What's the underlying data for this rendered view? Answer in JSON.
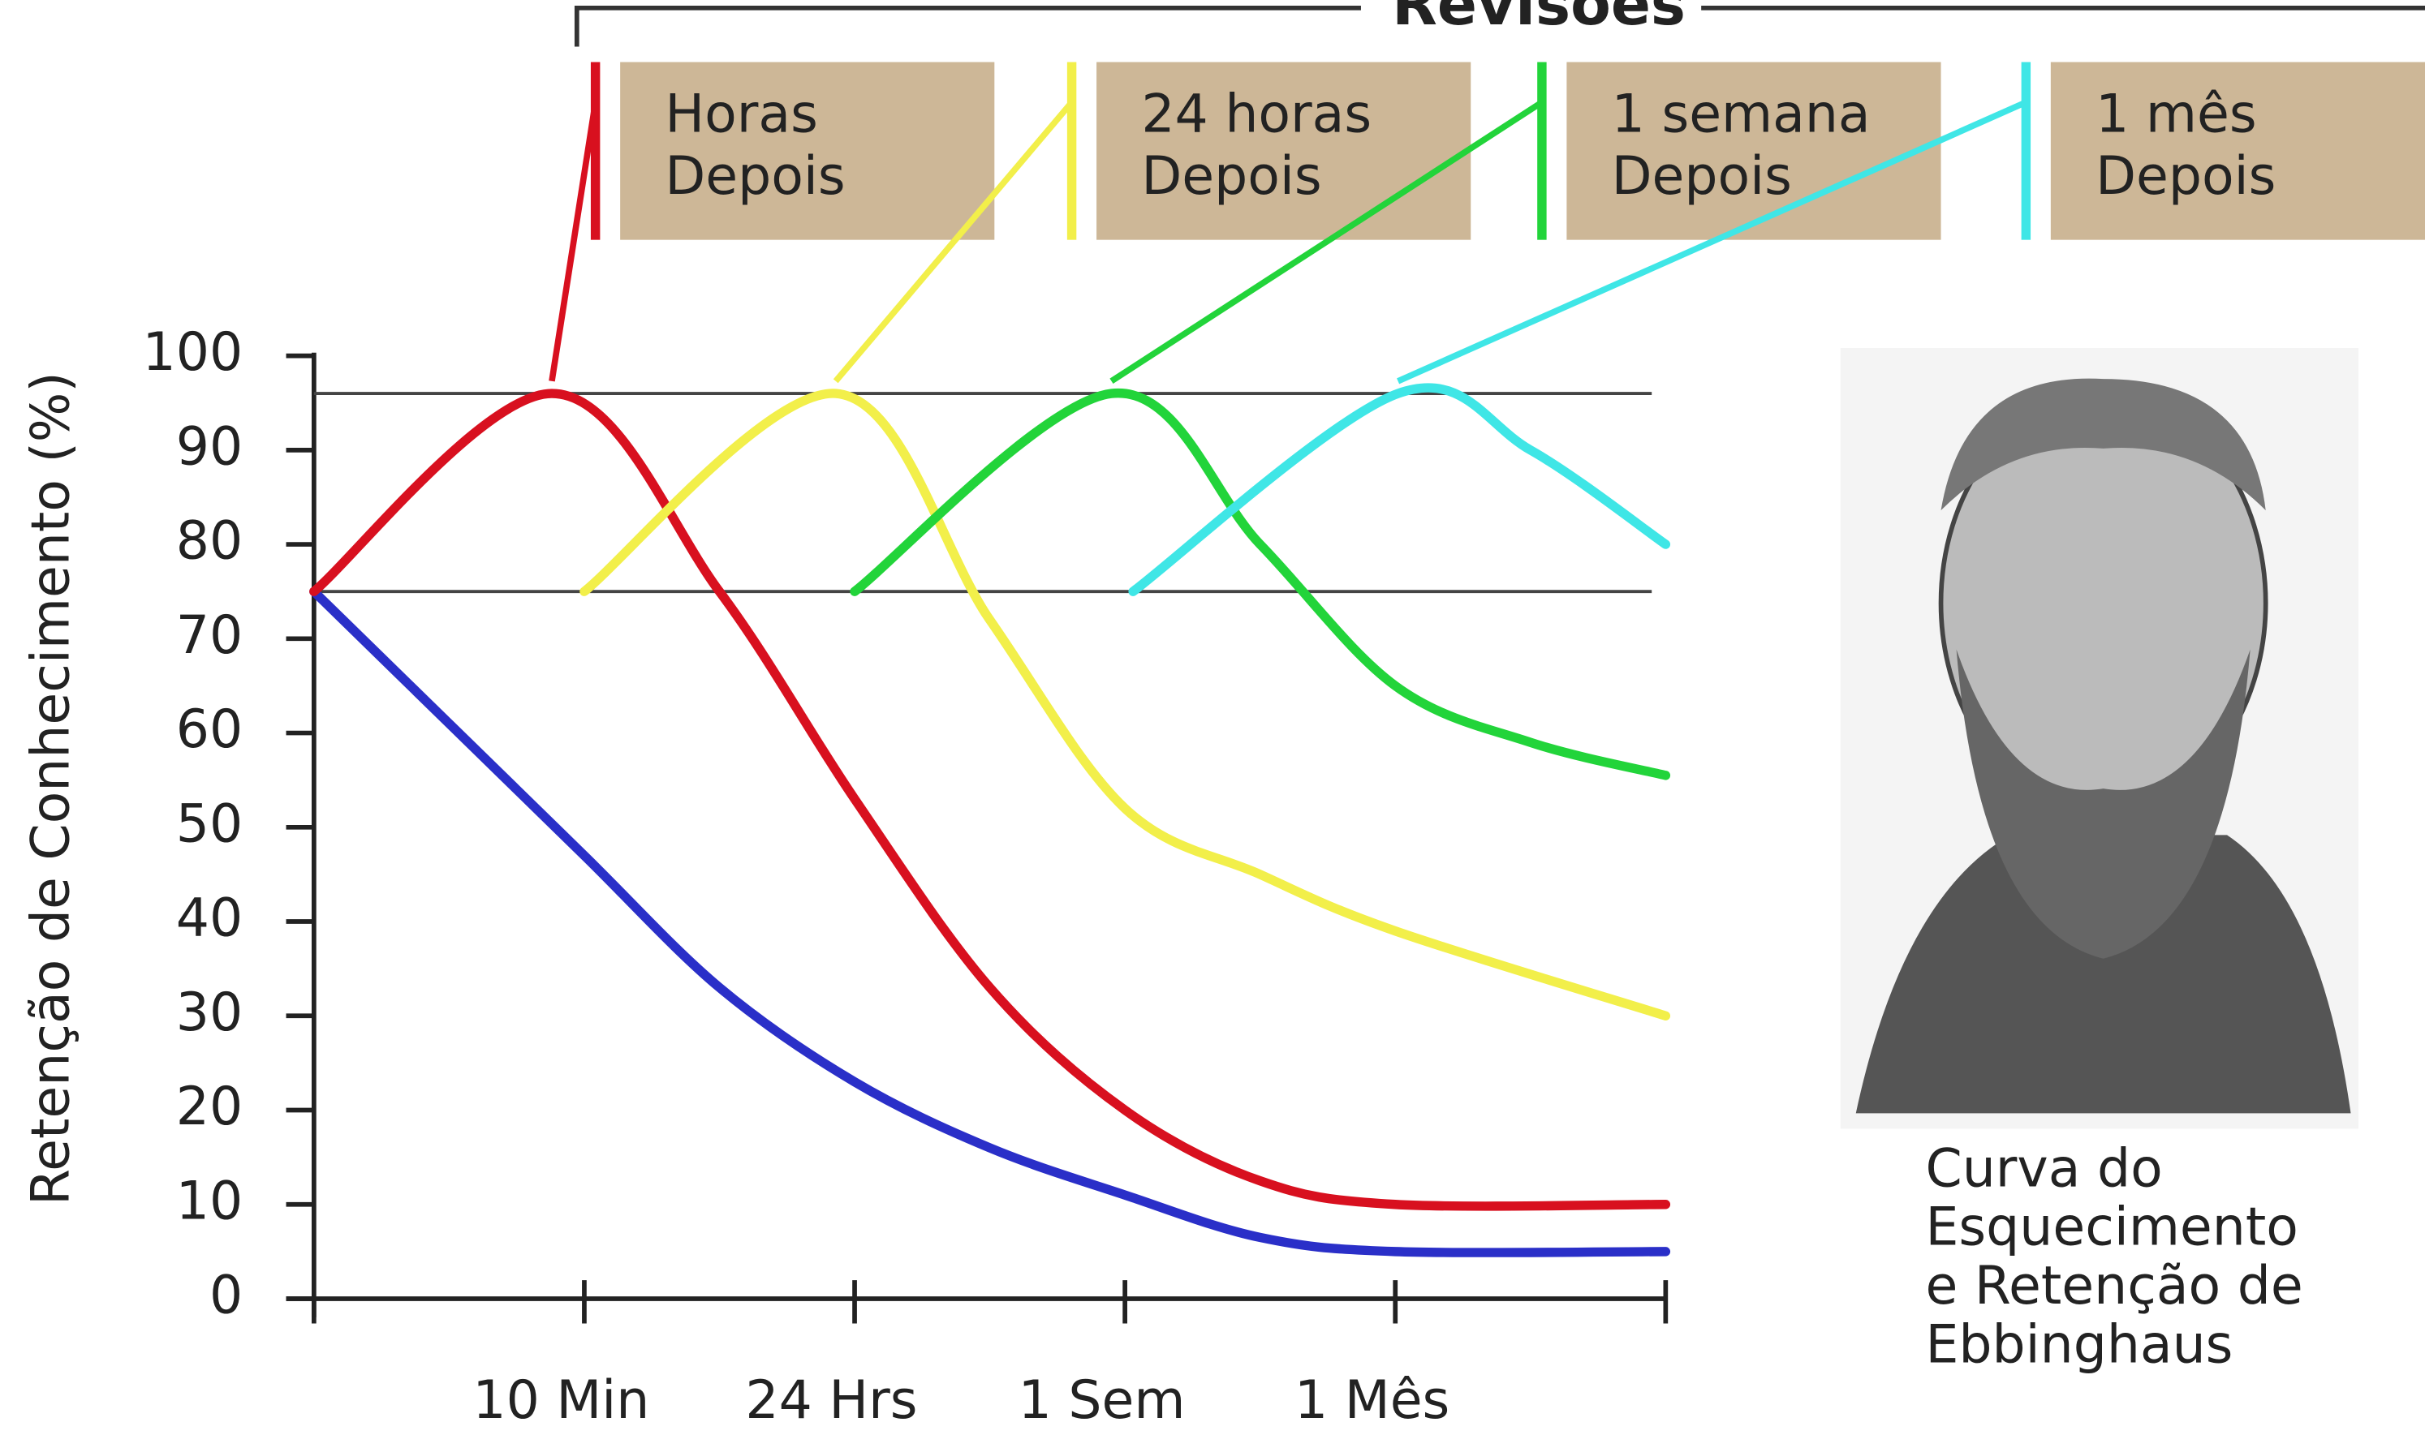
{
  "chart_data": {
    "type": "line",
    "ylabel": "Retenção de Conhecimento (%)",
    "ylim": [
      0,
      100
    ],
    "yticks": [
      0,
      10,
      20,
      30,
      40,
      50,
      60,
      70,
      80,
      90,
      100
    ],
    "xlim": [
      0,
      5
    ],
    "xticks": [
      {
        "value": 1,
        "label": "10 Min"
      },
      {
        "value": 2,
        "label": "24 Hrs"
      },
      {
        "value": 3,
        "label": "1 Sem"
      },
      {
        "value": 4,
        "label": "1 Mês"
      }
    ],
    "hlines": [
      96,
      75
    ],
    "series": [
      {
        "color": "#2a2fc8",
        "x": [
          0,
          0.5,
          1,
          1.5,
          2,
          2.5,
          3,
          3.5,
          4,
          5
        ],
        "values": [
          75,
          61,
          47,
          33,
          23,
          16,
          11,
          6.5,
          5,
          5
        ]
      },
      {
        "color": "#d8101f",
        "x": [
          0,
          0.88,
          1.5,
          2,
          2.5,
          3,
          3.5,
          4,
          5
        ],
        "values": [
          75,
          96,
          75,
          53,
          33,
          20,
          12.5,
          10,
          10
        ]
      },
      {
        "color": "#f2ef4a",
        "x": [
          1,
          1.93,
          2.5,
          3,
          3.5,
          4,
          5
        ],
        "values": [
          75,
          96,
          72,
          52,
          45,
          39,
          30
        ]
      },
      {
        "color": "#22d43a",
        "x": [
          2,
          2.95,
          3.5,
          4,
          4.5,
          5
        ],
        "values": [
          75,
          96,
          80,
          65,
          59,
          55.5
        ]
      },
      {
        "color": "#3fe6e6",
        "x": [
          3.03,
          4.01,
          4.5,
          5
        ],
        "values": [
          75,
          96,
          90,
          80
        ]
      }
    ],
    "revisions": {
      "title": "Revisões",
      "boxes": [
        {
          "lines": [
            "Horas",
            "Depois"
          ],
          "color": "#d8101f"
        },
        {
          "lines": [
            "24 horas",
            "Depois"
          ],
          "color": "#f2ef4a"
        },
        {
          "lines": [
            "1 semana",
            "Depois"
          ],
          "color": "#22d43a"
        },
        {
          "lines": [
            "1 mês",
            "Depois"
          ],
          "color": "#3fe6e6"
        }
      ]
    },
    "caption": [
      "Curva do",
      "Esquecimento",
      "e Retenção de",
      "Ebbinghaus"
    ]
  }
}
